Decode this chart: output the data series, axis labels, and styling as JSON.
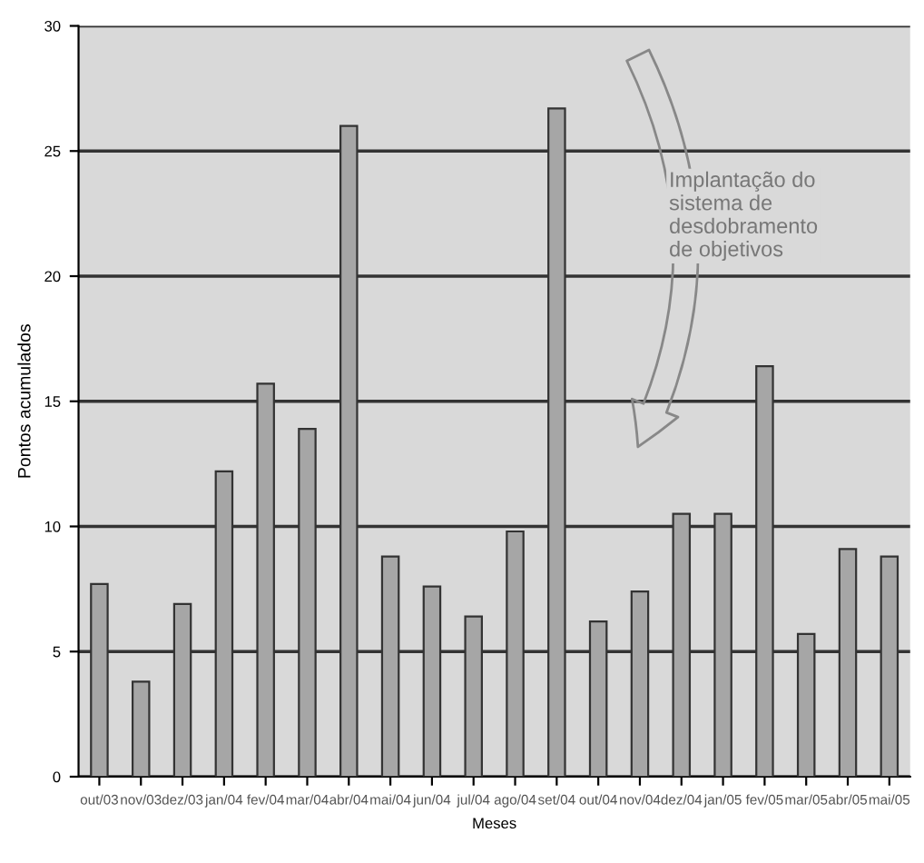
{
  "chart_data": {
    "type": "bar",
    "xlabel": "Meses",
    "ylabel": "Pontos acumulados",
    "categories": [
      "out/03",
      "nov/03",
      "dez/03",
      "jan/04",
      "fev/04",
      "mar/04",
      "abr/04",
      "mai/04",
      "jun/04",
      "jul/04",
      "ago/04",
      "set/04",
      "out/04",
      "nov/04",
      "dez/04",
      "jan/05",
      "fev/05",
      "mar/05",
      "abr/05",
      "mai/05"
    ],
    "values": [
      7.7,
      3.8,
      6.9,
      12.2,
      15.7,
      13.9,
      26.0,
      8.8,
      7.6,
      6.4,
      9.8,
      26.7,
      6.2,
      7.4,
      10.5,
      10.5,
      16.4,
      5.7,
      9.1,
      8.8
    ],
    "color": "#a6a6a6",
    "ylim": [
      0,
      30
    ],
    "yticks": [
      0,
      5,
      10,
      15,
      20,
      25,
      30
    ],
    "grid": "y",
    "annotations": [
      "Implantação do\nsistema de\ndesdobramento\nde objetivos"
    ]
  }
}
